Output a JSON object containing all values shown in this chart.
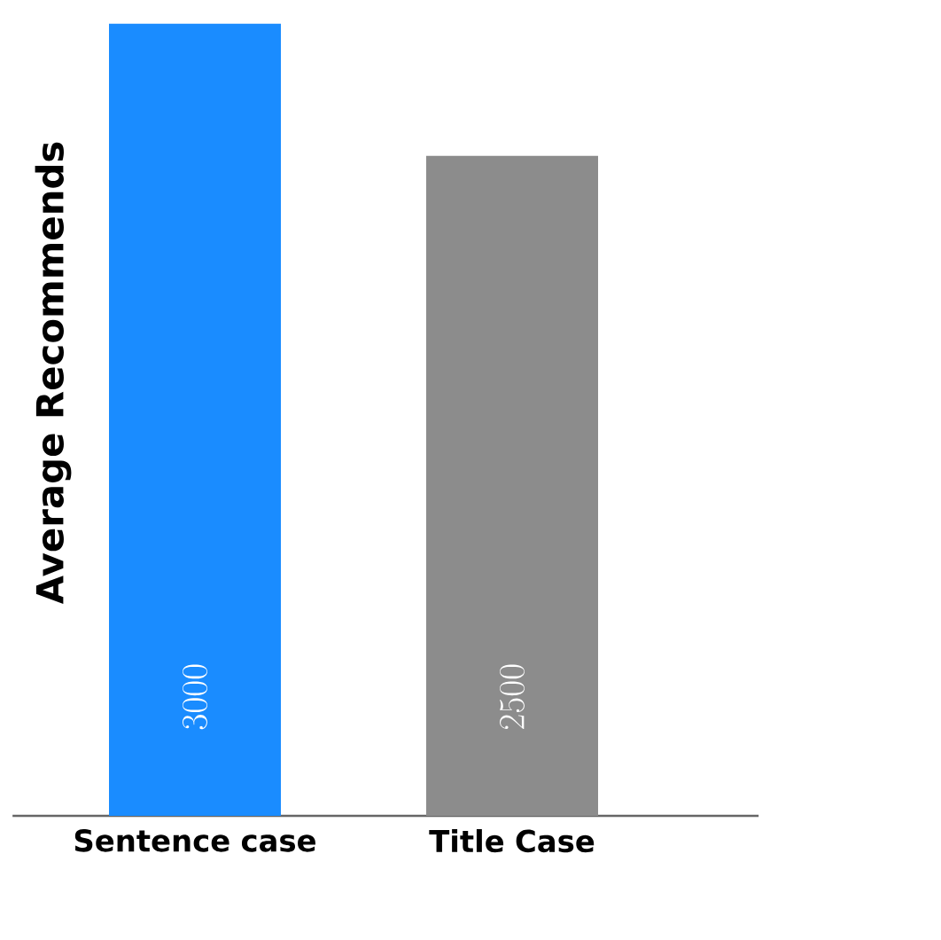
{
  "chart_data": {
    "type": "bar",
    "ylabel": "Average Recommends",
    "categories": [
      "Sentence case",
      "Title Case"
    ],
    "values": [
      3000,
      2500
    ],
    "colors": [
      "#1a8cff",
      "#8c8c8c"
    ],
    "data_labels": true
  }
}
